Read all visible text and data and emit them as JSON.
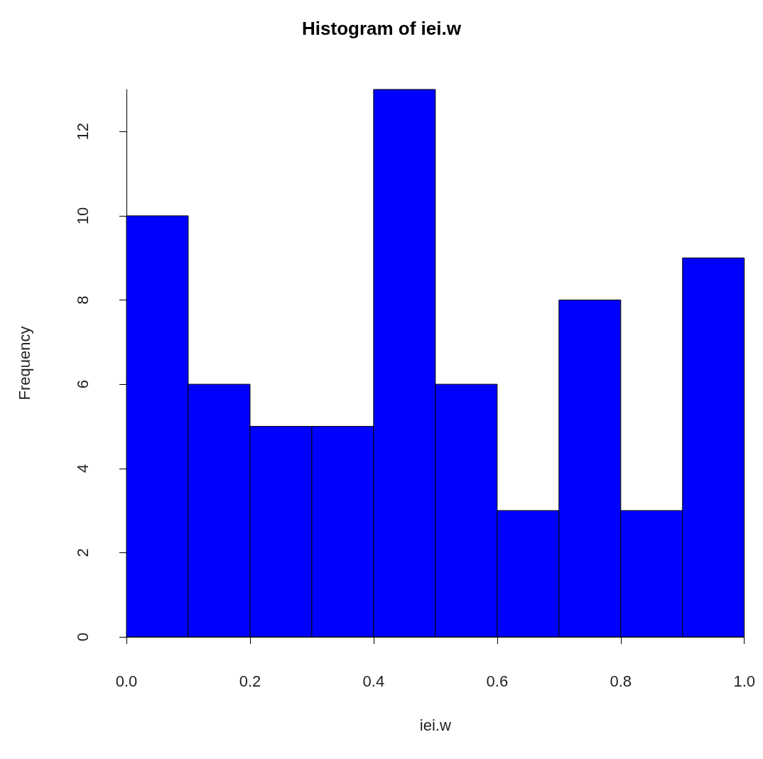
{
  "chart_data": {
    "type": "histogram",
    "title": "Histogram of iei.w",
    "xlabel": "iei.w",
    "ylabel": "Frequency",
    "bins": [
      0,
      0.1,
      0.2,
      0.3,
      0.4,
      0.5,
      0.6,
      0.7,
      0.8,
      0.9,
      1.0
    ],
    "values": [
      10,
      6,
      5,
      5,
      13,
      6,
      3,
      8,
      3,
      9
    ],
    "color": "#0000ff",
    "xlim": [
      0,
      1
    ],
    "xticks": [
      {
        "value": 0,
        "label": "0.0"
      },
      0.2,
      0.4,
      0.6,
      0.8,
      {
        "value": 1,
        "label": "1.0"
      }
    ],
    "ylim": [
      0,
      13
    ],
    "yticks": [
      0,
      2,
      4,
      6,
      8,
      10,
      12
    ],
    "grid": false
  }
}
